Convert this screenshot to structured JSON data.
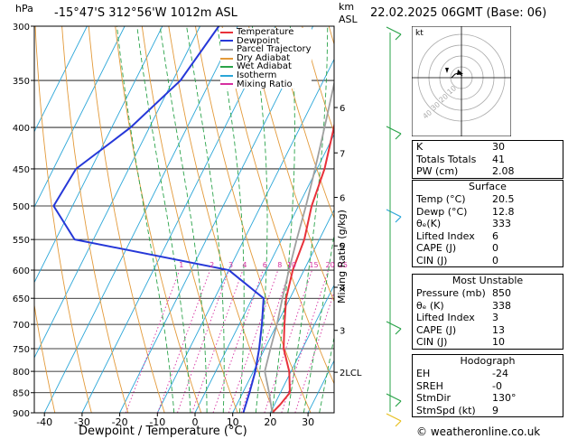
{
  "header": {
    "hpa_unit": "hPa",
    "location": "-15°47'S 312°56'W 1012m ASL",
    "km_unit": "km",
    "asl_unit": "ASL",
    "datetime": "22.02.2025 06GMT (Base: 06)"
  },
  "legend": [
    {
      "label": "Temperature",
      "color": "#e8313a"
    },
    {
      "label": "Dewpoint",
      "color": "#2638d8"
    },
    {
      "label": "Parcel Trajectory",
      "color": "#a0a0a0"
    },
    {
      "label": "Dry Adiabat",
      "color": "#e39a3a"
    },
    {
      "label": "Wet Adiabat",
      "color": "#2aa34a"
    },
    {
      "label": "Isotherm",
      "color": "#2aa6d8"
    },
    {
      "label": "Mixing Ratio",
      "color": "#d62fa0"
    }
  ],
  "chart_data": {
    "type": "line",
    "title": "",
    "xlabel": "Dewpoint / Temperature (°C)",
    "ylabel": "hPa",
    "right_axis_label": "Mixing Ratio (g/kg)",
    "x_ticks": [
      -40,
      -30,
      -20,
      -10,
      0,
      10,
      20,
      30
    ],
    "pressure_ticks": [
      300,
      350,
      400,
      450,
      500,
      550,
      600,
      650,
      700,
      750,
      800,
      850,
      900
    ],
    "km_ticks": [
      {
        "label": "6",
        "p": 378
      },
      {
        "label": "7",
        "p": 430
      },
      {
        "label": "6",
        "p": 488
      },
      {
        "label": "5",
        "p": 560
      },
      {
        "label": "4",
        "p": 630
      },
      {
        "label": "3",
        "p": 712
      },
      {
        "label": "2LCL",
        "p": 802
      }
    ],
    "mixing_ratio_labels": [
      "1",
      "2",
      "3",
      "4",
      "6",
      "8",
      "10",
      "15",
      "20",
      "25"
    ],
    "mixing_ratio_values": [
      1,
      2,
      3,
      4,
      6,
      8,
      10,
      15,
      20,
      25
    ],
    "isotherms": [
      -80,
      -70,
      -60,
      -50,
      -40,
      -30,
      -20,
      -10,
      0,
      10,
      20,
      30,
      40
    ],
    "dry_adiabats_theta_c": [
      -30,
      -20,
      -10,
      0,
      10,
      20,
      30,
      40,
      50,
      60,
      70,
      80,
      90,
      100,
      110,
      120,
      130,
      140
    ],
    "wet_adiabats_c": [
      0,
      4,
      8,
      12,
      16,
      20,
      24,
      28,
      32,
      36
    ],
    "series": [
      {
        "name": "Temperature",
        "color": "#e8313a",
        "points": [
          [
            300,
            -9
          ],
          [
            350,
            -5
          ],
          [
            400,
            -1
          ],
          [
            450,
            2
          ],
          [
            500,
            3.5
          ],
          [
            550,
            6
          ],
          [
            600,
            7
          ],
          [
            650,
            9
          ],
          [
            700,
            12
          ],
          [
            750,
            15
          ],
          [
            800,
            19.5
          ],
          [
            850,
            22.5
          ],
          [
            880,
            21.5
          ],
          [
            900,
            20.5
          ]
        ]
      },
      {
        "name": "Dewpoint",
        "color": "#2638d8",
        "points": [
          [
            300,
            -45
          ],
          [
            350,
            -48
          ],
          [
            400,
            -55
          ],
          [
            450,
            -64
          ],
          [
            500,
            -65
          ],
          [
            550,
            -55
          ],
          [
            600,
            -10
          ],
          [
            650,
            3
          ],
          [
            700,
            6
          ],
          [
            750,
            8.5
          ],
          [
            800,
            10.5
          ],
          [
            850,
            11.8
          ],
          [
            900,
            12.8
          ]
        ]
      },
      {
        "name": "Parcel Trajectory",
        "color": "#a0a0a0",
        "points": [
          [
            300,
            -11
          ],
          [
            350,
            -7
          ],
          [
            400,
            -3.5
          ],
          [
            450,
            -0.5
          ],
          [
            500,
            2
          ],
          [
            550,
            4
          ],
          [
            600,
            6
          ],
          [
            650,
            8
          ],
          [
            700,
            10
          ],
          [
            750,
            11.5
          ],
          [
            800,
            13
          ],
          [
            850,
            17
          ],
          [
            900,
            20.5
          ]
        ]
      }
    ]
  },
  "hodograph": {
    "unit": "kt",
    "ring_labels": [
      "10",
      "20",
      "30",
      "40"
    ]
  },
  "indices": [
    {
      "label": "K",
      "value": "30"
    },
    {
      "label": "Totals Totals",
      "value": "41"
    },
    {
      "label": "PW (cm)",
      "value": "2.08"
    }
  ],
  "surface": {
    "title": "Surface",
    "rows": [
      {
        "label": "Temp (°C)",
        "value": "20.5"
      },
      {
        "label": "Dewp (°C)",
        "value": "12.8"
      },
      {
        "label": "θₑ(K)",
        "value": "333"
      },
      {
        "label": "Lifted Index",
        "value": "6"
      },
      {
        "label": "CAPE (J)",
        "value": "0"
      },
      {
        "label": "CIN (J)",
        "value": "0"
      }
    ]
  },
  "most_unstable": {
    "title": "Most Unstable",
    "rows": [
      {
        "label": "Pressure (mb)",
        "value": "850"
      },
      {
        "label": "θₑ (K)",
        "value": "338"
      },
      {
        "label": "Lifted Index",
        "value": "3"
      },
      {
        "label": "CAPE (J)",
        "value": "13"
      },
      {
        "label": "CIN (J)",
        "value": "10"
      }
    ]
  },
  "hodograph_table": {
    "title": "Hodograph",
    "rows": [
      {
        "label": "EH",
        "value": "-24"
      },
      {
        "label": "SREH",
        "value": "-0"
      },
      {
        "label": "StmDir",
        "value": "130°"
      },
      {
        "label": "StmSpd (kt)",
        "value": "9"
      }
    ]
  },
  "copyright": "© weatheronline.co.uk"
}
